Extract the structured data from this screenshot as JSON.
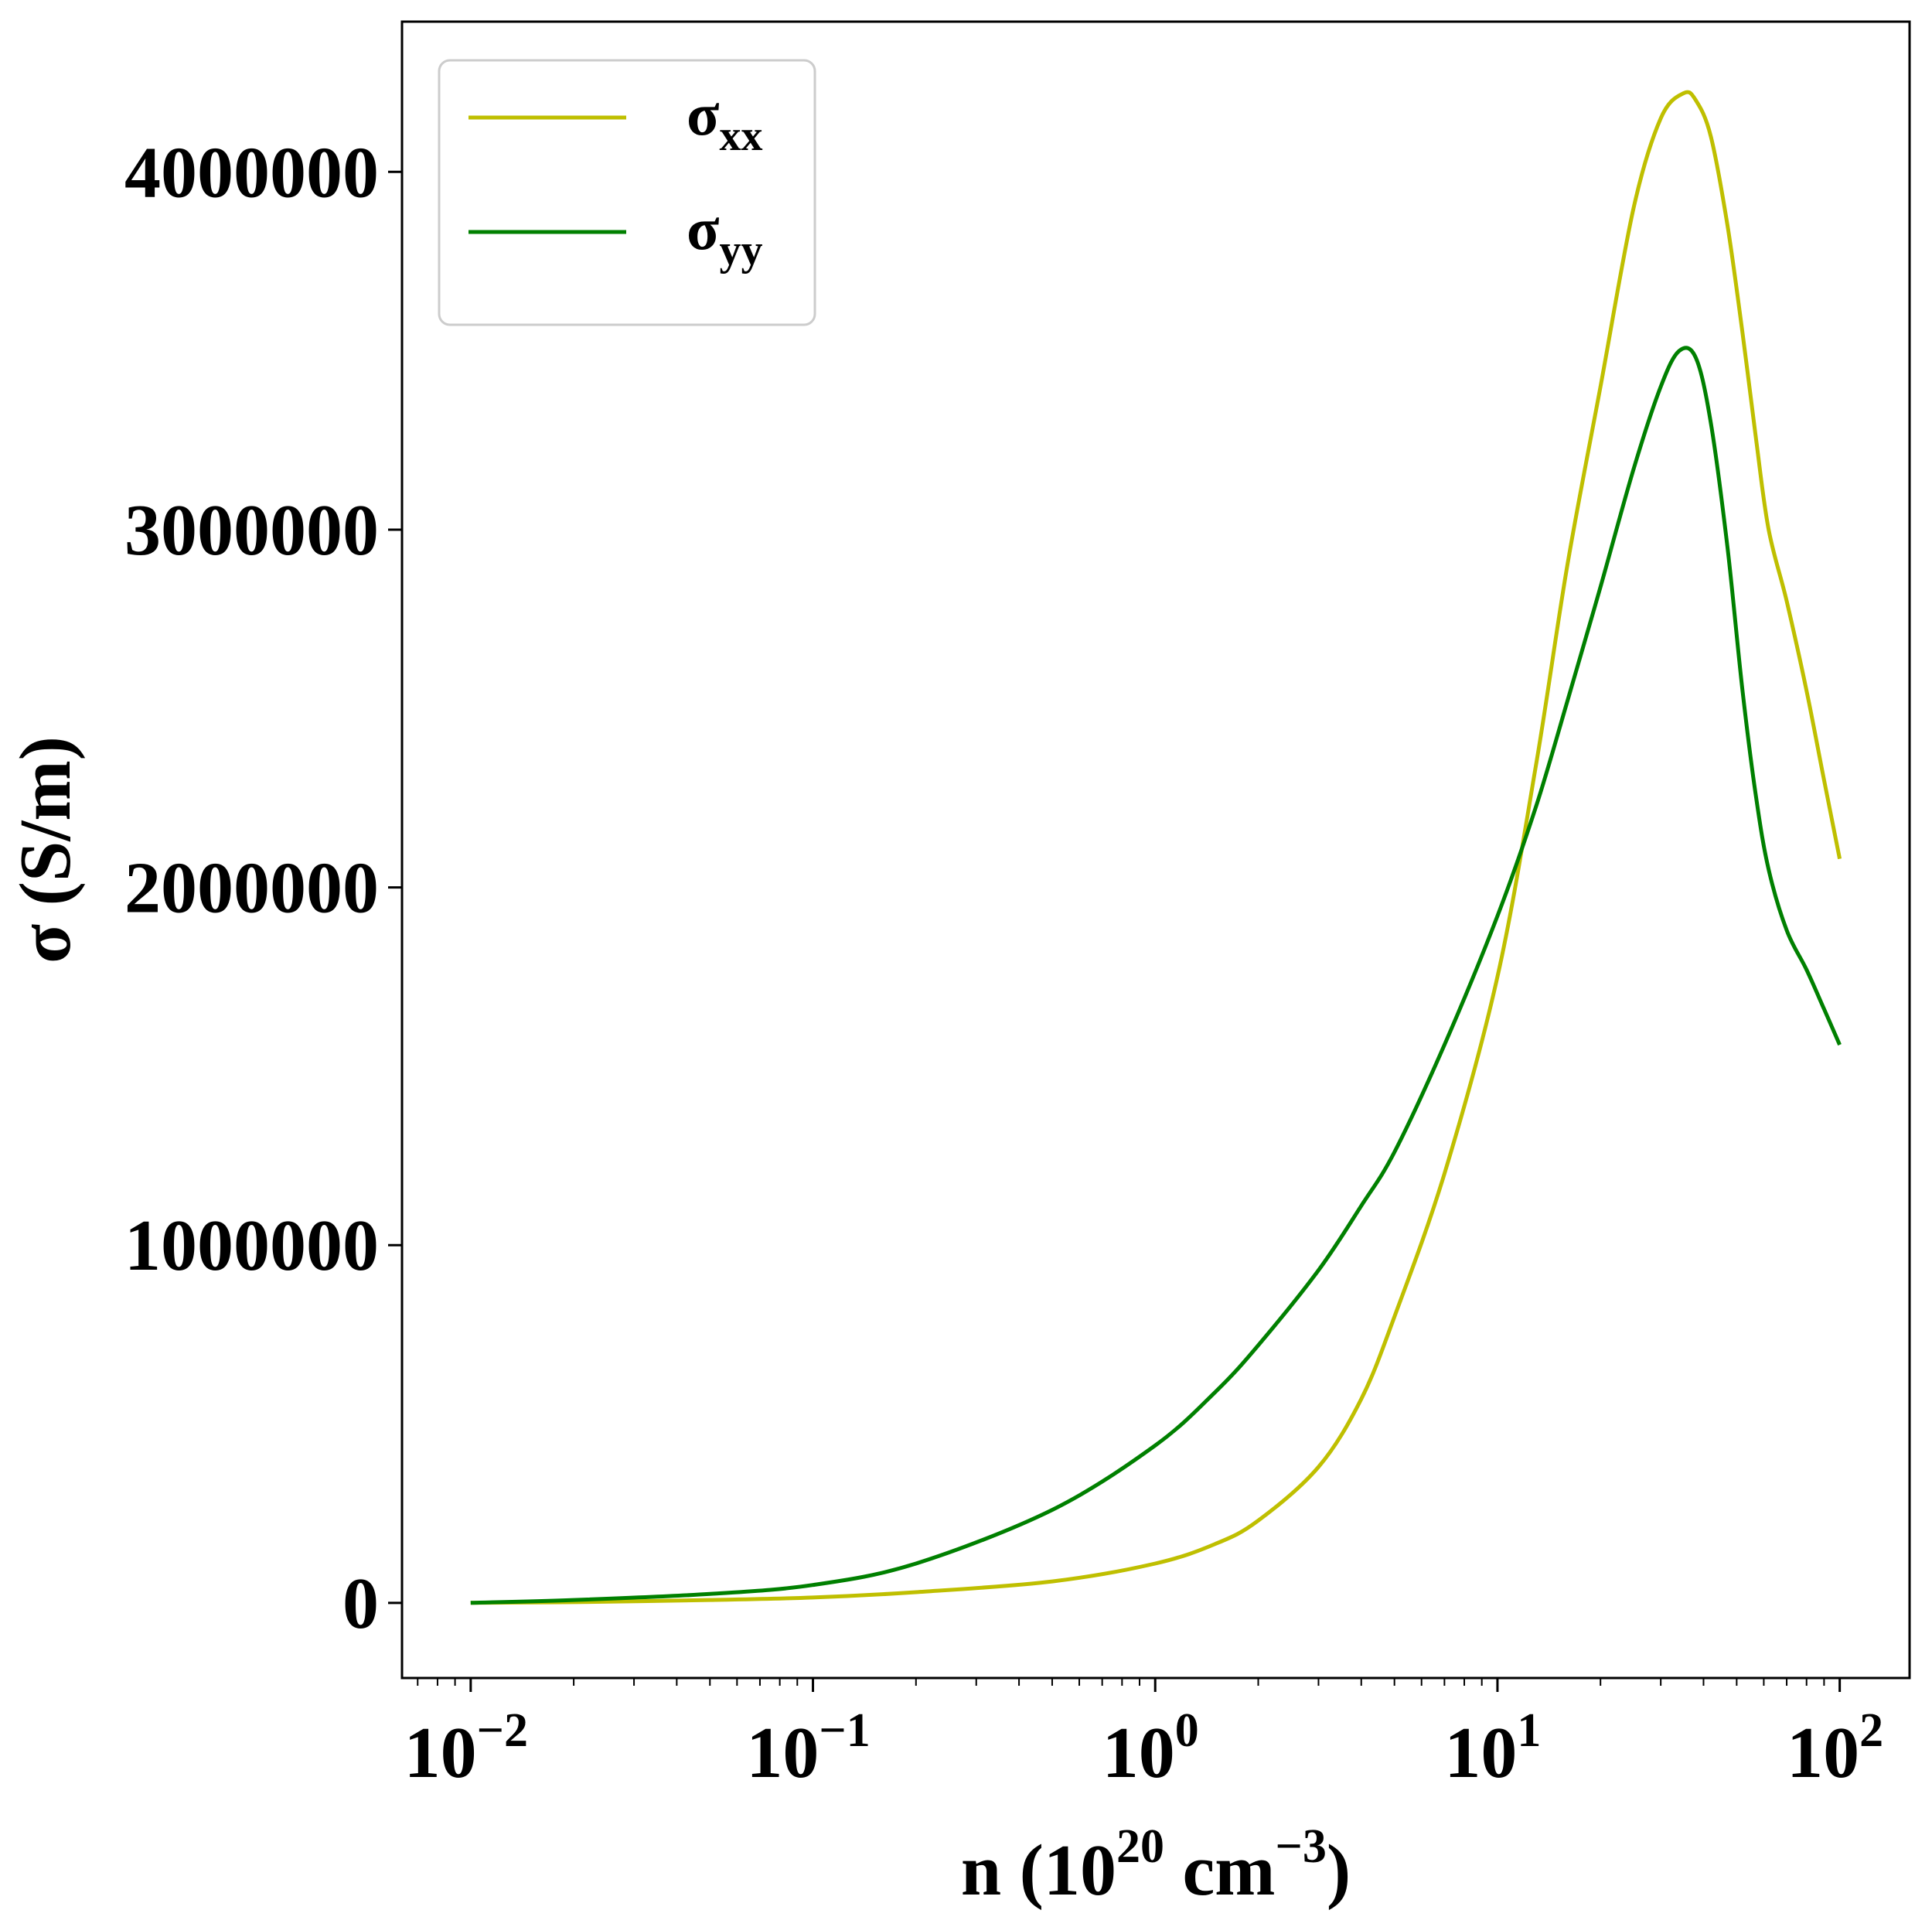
{
  "chart_data": {
    "type": "line",
    "title": "",
    "xlabel": {
      "prefix": "n (10",
      "exp1": "20",
      "mid": " cm",
      "exp2": "−3",
      "suffix": ")"
    },
    "ylabel": "σ (S/m)",
    "xscale": "log",
    "xlim": [
      0.0063,
      160
    ],
    "ylim": [
      -210000,
      4420000
    ],
    "grid": false,
    "legend_position": "top-left",
    "x_ticks": [
      {
        "value": 0.01,
        "base": "10",
        "exp": "−2"
      },
      {
        "value": 0.1,
        "base": "10",
        "exp": "−1"
      },
      {
        "value": 1,
        "base": "10",
        "exp": "0"
      },
      {
        "value": 10,
        "base": "10",
        "exp": "1"
      },
      {
        "value": 100,
        "base": "10",
        "exp": "2"
      }
    ],
    "y_ticks": [
      {
        "value": 0,
        "label": "0"
      },
      {
        "value": 1000000,
        "label": "1000000"
      },
      {
        "value": 2000000,
        "label": "2000000"
      },
      {
        "value": 3000000,
        "label": "3000000"
      },
      {
        "value": 4000000,
        "label": "4000000"
      }
    ],
    "series": [
      {
        "name": "σ",
        "subscript": "xx",
        "color": "#bfbf00",
        "x": [
          0.01,
          0.02,
          0.05,
          0.1,
          0.2,
          0.5,
          1,
          1.5,
          2,
          3,
          4,
          5,
          7,
          10,
          13,
          16,
          20,
          25,
          30,
          35,
          38,
          42,
          47,
          52,
          57,
          62,
          70,
          80,
          90,
          100
        ],
        "y": [
          0,
          2000,
          8000,
          15000,
          30000,
          60000,
          110000,
          165000,
          230000,
          380000,
          570000,
          800000,
          1200000,
          1750000,
          2350000,
          2900000,
          3400000,
          3900000,
          4150000,
          4220000,
          4200000,
          4100000,
          3850000,
          3550000,
          3250000,
          3000000,
          2800000,
          2550000,
          2300000,
          2080000
        ]
      },
      {
        "name": "σ",
        "subscript": "yy",
        "color": "#008000",
        "x": [
          0.01,
          0.02,
          0.05,
          0.1,
          0.2,
          0.5,
          1,
          1.5,
          2,
          3,
          4,
          5,
          7,
          10,
          13,
          16,
          20,
          25,
          30,
          34,
          38,
          42,
          47,
          52,
          57,
          62,
          70,
          80,
          90,
          100
        ],
        "y": [
          0,
          8000,
          25000,
          50000,
          110000,
          260000,
          440000,
          590000,
          720000,
          930000,
          1110000,
          1260000,
          1560000,
          1920000,
          2230000,
          2520000,
          2840000,
          3170000,
          3400000,
          3500000,
          3480000,
          3300000,
          2950000,
          2550000,
          2250000,
          2050000,
          1880000,
          1770000,
          1660000,
          1560000
        ]
      }
    ]
  }
}
